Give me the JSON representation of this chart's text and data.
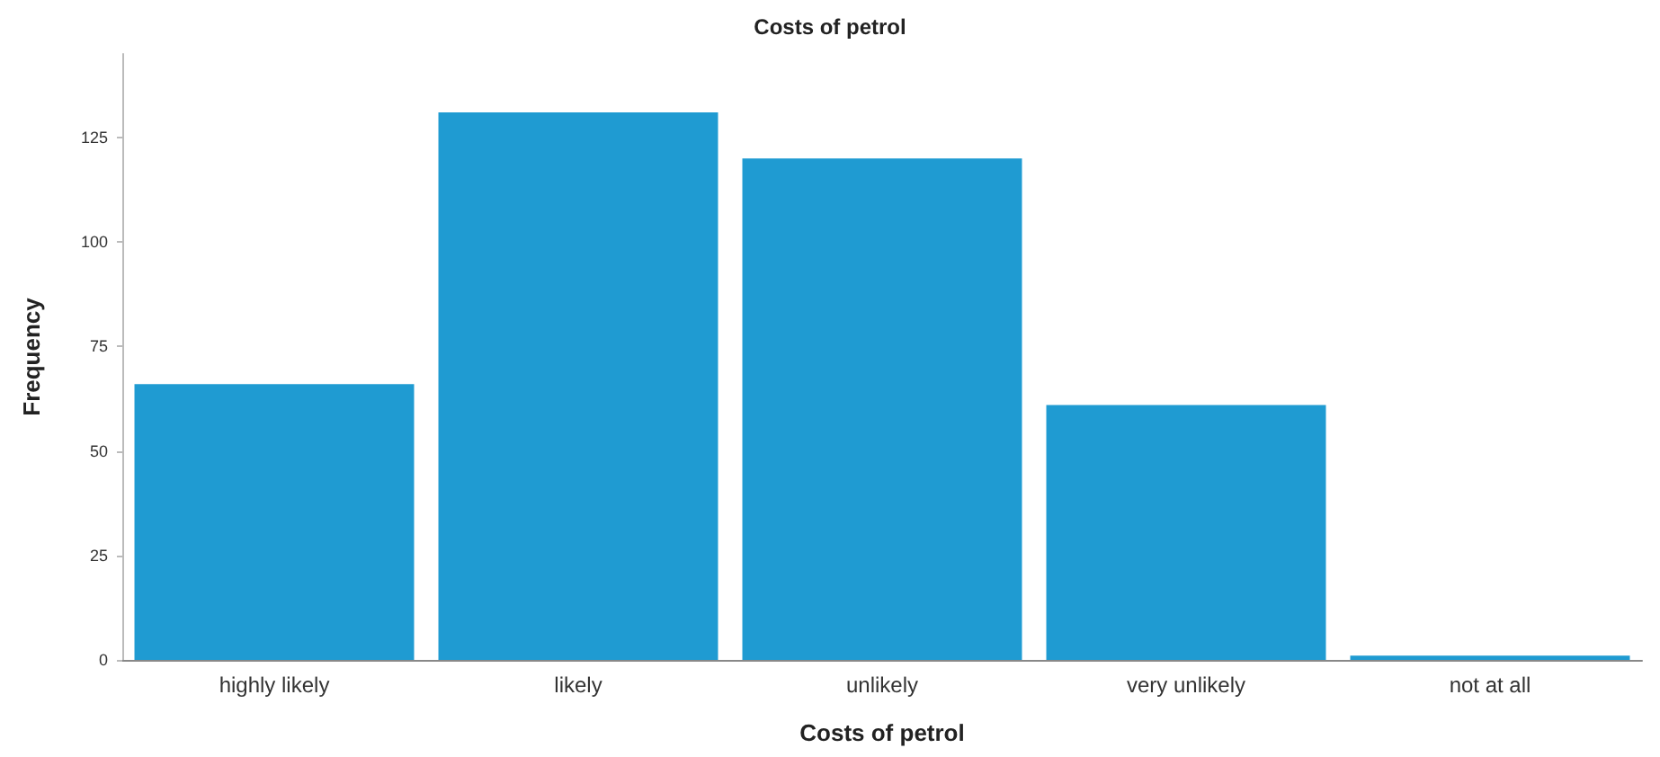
{
  "chart_data": {
    "type": "bar",
    "title": "Costs of petrol",
    "xlabel": "Costs of petrol",
    "ylabel": "Frequency",
    "categories": [
      "highly likely",
      "likely",
      "unlikely",
      "very unlikely",
      "not at all"
    ],
    "values": [
      66,
      131,
      120,
      61,
      1
    ],
    "color": "#1f9bd2",
    "ylim": [
      0,
      145
    ],
    "yticks": [
      0,
      25,
      50,
      75,
      100,
      125
    ],
    "grid": false
  }
}
